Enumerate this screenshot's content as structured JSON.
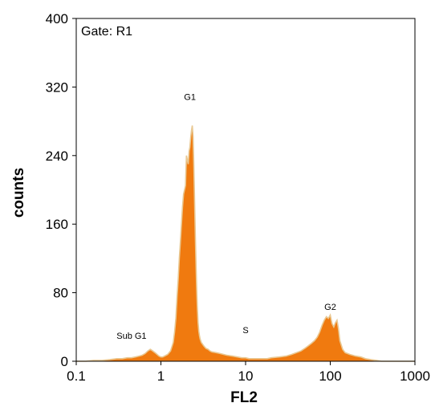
{
  "chart_data": {
    "type": "area",
    "gate_label": "Gate: R1",
    "xlabel": "FL2",
    "ylabel": "counts",
    "x_scale": "log",
    "xlim": [
      0.1,
      1000
    ],
    "ylim": [
      0,
      400
    ],
    "x_ticks": [
      0.1,
      1,
      10,
      100,
      1000
    ],
    "x_tick_labels": [
      "0.1",
      "1",
      "10",
      "100",
      "1000"
    ],
    "y_ticks": [
      0,
      80,
      160,
      240,
      320,
      400
    ],
    "y_tick_labels": [
      "0",
      "80",
      "160",
      "240",
      "320",
      "400"
    ],
    "grid": false,
    "fill_color": "#f07a0f",
    "outline_color": "#e9c892",
    "annotations": [
      {
        "text": "G1",
        "x": 2.2,
        "y": 305
      },
      {
        "text": "Sub G1",
        "x": 0.45,
        "y": 26
      },
      {
        "text": "S",
        "x": 10,
        "y": 33
      },
      {
        "text": "G2",
        "x": 100,
        "y": 60
      }
    ],
    "series": [
      {
        "x": [
          0.1,
          0.13,
          0.16,
          0.2,
          0.25,
          0.3,
          0.35,
          0.4,
          0.45,
          0.5,
          0.55,
          0.6,
          0.65,
          0.7,
          0.75,
          0.8,
          0.85,
          0.9,
          0.95,
          1.0,
          1.05,
          1.1,
          1.2,
          1.3,
          1.4,
          1.45,
          1.5,
          1.55,
          1.6,
          1.65,
          1.7,
          1.75,
          1.8,
          1.85,
          1.9,
          1.95,
          2.0,
          2.05,
          2.1,
          2.15,
          2.2,
          2.25,
          2.3,
          2.35,
          2.4,
          2.45,
          2.5,
          2.55,
          2.6,
          2.65,
          2.7,
          2.75,
          2.8,
          2.85,
          2.9,
          3.0,
          3.2,
          3.4,
          3.6,
          3.8,
          4.0,
          4.5,
          5.0,
          5.5,
          6.0,
          7.0,
          8.0,
          9.0,
          10,
          11,
          12,
          14,
          16,
          18,
          20,
          25,
          30,
          35,
          40,
          45,
          50,
          55,
          60,
          65,
          70,
          75,
          80,
          85,
          90,
          95,
          100,
          105,
          110,
          115,
          120,
          125,
          130,
          140,
          150,
          170,
          200,
          230,
          260,
          300,
          350,
          400,
          1000
        ],
        "y": [
          0,
          0,
          1,
          1,
          2,
          3,
          3,
          4,
          4,
          5,
          6,
          7,
          9,
          12,
          14,
          12,
          10,
          8,
          6,
          5,
          5,
          6,
          8,
          12,
          22,
          34,
          50,
          75,
          95,
          120,
          140,
          160,
          180,
          195,
          200,
          205,
          240,
          235,
          230,
          245,
          250,
          262,
          270,
          275,
          262,
          225,
          185,
          145,
          110,
          80,
          60,
          45,
          35,
          30,
          26,
          22,
          18,
          15,
          14,
          12,
          11,
          10,
          9,
          8,
          7,
          6,
          5,
          4,
          4,
          3,
          3,
          3,
          3,
          3,
          4,
          5,
          6,
          8,
          10,
          12,
          15,
          18,
          21,
          24,
          28,
          34,
          42,
          48,
          52,
          50,
          54,
          44,
          40,
          45,
          48,
          38,
          24,
          14,
          10,
          8,
          6,
          5,
          3,
          2,
          1,
          0,
          0
        ]
      }
    ]
  }
}
